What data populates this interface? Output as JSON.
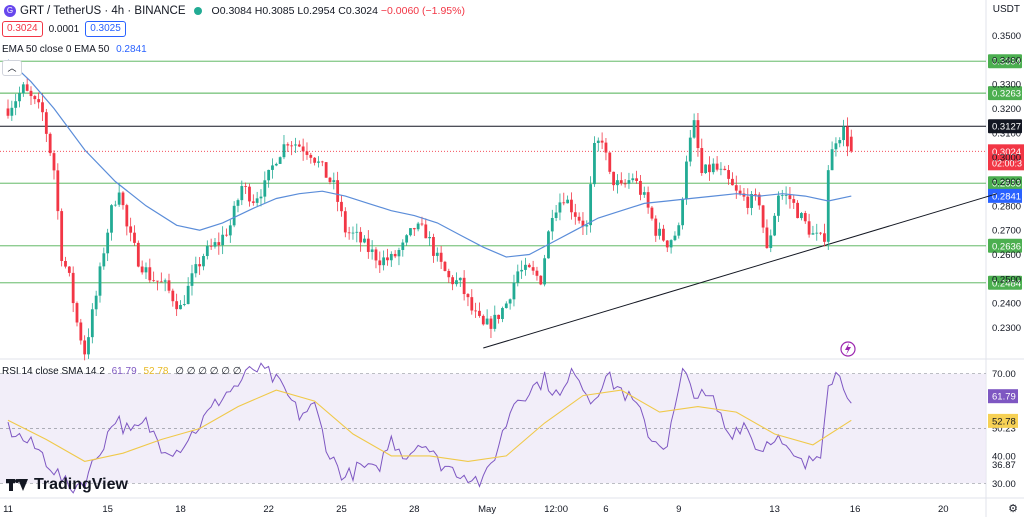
{
  "header": {
    "symbol_icon": "coin-icon",
    "symbol": "GRT / TetherUS · 4h · BINANCE",
    "open": "O0.3084",
    "high": "H0.3085",
    "low": "L0.2954",
    "close": "C0.3024",
    "change": "−0.0060 (−1.95%)",
    "sell_price": "0.3024",
    "spread": "0.0001",
    "buy_price": "0.3025",
    "ema_legend": "EMA 50 close 0 EMA 50",
    "ema_value": "0.2841",
    "currency": "USDT",
    "collapse_icon": "chevron-up-icon"
  },
  "rsi_legend": {
    "label": "RSI 14 close SMA 14 2",
    "rsi_value": "61.79",
    "sma_value": "52.78",
    "zeros": "∅ ∅ ∅ ∅ ∅ ∅"
  },
  "branding": {
    "name": "TradingView",
    "icon": "tradingview-logo-icon"
  },
  "footer_icon": "gear-icon",
  "colors": {
    "up": "#22ab94",
    "down": "#f23645",
    "ema": "#5b8dd9",
    "rsi": "#7e57c2",
    "rsi_sma": "#f0c94a",
    "level": "#4caf50",
    "resistance": "#131722",
    "band": "#ede7f6"
  },
  "chart_data": {
    "type": "candlestick",
    "price_axis": {
      "range": [
        0.2175,
        0.3625
      ],
      "ticks": [
        "0.2300",
        "0.2400",
        "0.2500",
        "0.2600",
        "0.2700",
        "0.2800",
        "0.2900",
        "0.3000",
        "0.3100",
        "0.3200",
        "0.3300",
        "0.3400",
        "0.3500"
      ]
    },
    "time_axis": {
      "labels": [
        "11",
        "15",
        "18",
        "22",
        "25",
        "28",
        "May",
        "12:00",
        "6",
        "9",
        "13",
        "16",
        "20"
      ],
      "label_index": [
        0,
        26,
        45,
        68,
        87,
        106,
        125,
        143,
        156,
        175,
        200,
        221,
        244
      ]
    },
    "horizontal_levels": [
      {
        "value": 0.3394,
        "label": "0.3394",
        "color": "#4caf50"
      },
      {
        "value": 0.3263,
        "label": "0.3263",
        "color": "#4caf50"
      },
      {
        "value": 0.3127,
        "label": "0.3127",
        "color": "#131722"
      },
      {
        "value": 0.2893,
        "label": "0.2893",
        "color": "#4caf50"
      },
      {
        "value": 0.2636,
        "label": "0.2636",
        "color": "#4caf50"
      },
      {
        "value": 0.2484,
        "label": "0.2484",
        "color": "#4caf50"
      }
    ],
    "current_price": {
      "value": 0.3024,
      "label": "0.3024",
      "countdown": "02:00:3"
    },
    "ema_label": {
      "value": 0.2841,
      "label": "0.2841"
    },
    "trendline": {
      "from": [
        124,
        0.2216
      ],
      "to": [
        258,
        0.285
      ]
    },
    "anchors": [
      [
        0,
        0.32
      ],
      [
        4,
        0.328
      ],
      [
        9,
        0.318
      ],
      [
        12,
        0.295
      ],
      [
        14,
        0.26
      ],
      [
        16,
        0.25
      ],
      [
        18,
        0.232
      ],
      [
        20,
        0.22
      ],
      [
        23,
        0.243
      ],
      [
        25,
        0.262
      ],
      [
        27,
        0.278
      ],
      [
        29,
        0.288
      ],
      [
        31,
        0.271
      ],
      [
        34,
        0.258
      ],
      [
        37,
        0.251
      ],
      [
        41,
        0.247
      ],
      [
        45,
        0.238
      ],
      [
        48,
        0.25
      ],
      [
        51,
        0.26
      ],
      [
        55,
        0.265
      ],
      [
        58,
        0.272
      ],
      [
        61,
        0.288
      ],
      [
        64,
        0.283
      ],
      [
        67,
        0.288
      ],
      [
        70,
        0.3
      ],
      [
        73,
        0.307
      ],
      [
        76,
        0.305
      ],
      [
        79,
        0.302
      ],
      [
        82,
        0.295
      ],
      [
        85,
        0.288
      ],
      [
        88,
        0.27
      ],
      [
        91,
        0.267
      ],
      [
        94,
        0.262
      ],
      [
        97,
        0.258
      ],
      [
        100,
        0.258
      ],
      [
        103,
        0.263
      ],
      [
        106,
        0.271
      ],
      [
        109,
        0.269
      ],
      [
        112,
        0.258
      ],
      [
        115,
        0.25
      ],
      [
        118,
        0.248
      ],
      [
        121,
        0.237
      ],
      [
        124,
        0.23
      ],
      [
        127,
        0.233
      ],
      [
        130,
        0.24
      ],
      [
        133,
        0.253
      ],
      [
        136,
        0.253
      ],
      [
        139,
        0.25
      ],
      [
        142,
        0.278
      ],
      [
        145,
        0.284
      ],
      [
        148,
        0.277
      ],
      [
        151,
        0.271
      ],
      [
        153,
        0.303
      ],
      [
        155,
        0.308
      ],
      [
        157,
        0.292
      ],
      [
        160,
        0.287
      ],
      [
        163,
        0.292
      ],
      [
        166,
        0.283
      ],
      [
        169,
        0.27
      ],
      [
        172,
        0.265
      ],
      [
        175,
        0.27
      ],
      [
        177,
        0.3
      ],
      [
        179,
        0.313
      ],
      [
        181,
        0.293
      ],
      [
        184,
        0.296
      ],
      [
        187,
        0.292
      ],
      [
        190,
        0.285
      ],
      [
        193,
        0.282
      ],
      [
        196,
        0.282
      ],
      [
        198,
        0.261
      ],
      [
        201,
        0.285
      ],
      [
        204,
        0.283
      ],
      [
        207,
        0.275
      ],
      [
        210,
        0.268
      ],
      [
        212,
        0.266
      ],
      [
        213,
        0.268
      ],
      [
        214,
        0.296
      ],
      [
        216,
        0.308
      ],
      [
        218,
        0.311
      ],
      [
        220,
        0.302
      ]
    ],
    "ema_series": [
      [
        0,
        0.34
      ],
      [
        6,
        0.331
      ],
      [
        12,
        0.32
      ],
      [
        20,
        0.303
      ],
      [
        28,
        0.29
      ],
      [
        36,
        0.28
      ],
      [
        44,
        0.272
      ],
      [
        50,
        0.27
      ],
      [
        56,
        0.273
      ],
      [
        64,
        0.279
      ],
      [
        70,
        0.283
      ],
      [
        76,
        0.285
      ],
      [
        82,
        0.286
      ],
      [
        88,
        0.284
      ],
      [
        94,
        0.281
      ],
      [
        100,
        0.278
      ],
      [
        106,
        0.276
      ],
      [
        112,
        0.273
      ],
      [
        118,
        0.268
      ],
      [
        124,
        0.263
      ],
      [
        130,
        0.259
      ],
      [
        136,
        0.26
      ],
      [
        142,
        0.265
      ],
      [
        148,
        0.27
      ],
      [
        154,
        0.275
      ],
      [
        160,
        0.278
      ],
      [
        166,
        0.281
      ],
      [
        172,
        0.282
      ],
      [
        178,
        0.283
      ],
      [
        184,
        0.284
      ],
      [
        190,
        0.285
      ],
      [
        196,
        0.284
      ],
      [
        202,
        0.285
      ],
      [
        208,
        0.284
      ],
      [
        214,
        0.282
      ],
      [
        220,
        0.284
      ]
    ],
    "rsi_panel": {
      "ticks": [
        "70.00",
        "50.23",
        "40.00",
        "36.87",
        "30.00"
      ],
      "range": [
        25,
        75
      ],
      "band": [
        30,
        70
      ],
      "mid": 50,
      "rsi_label": "61.79",
      "sma_label": "52.78",
      "rsi_anchors": [
        [
          0,
          50
        ],
        [
          4,
          46
        ],
        [
          8,
          42
        ],
        [
          12,
          35
        ],
        [
          16,
          28
        ],
        [
          20,
          31
        ],
        [
          24,
          42
        ],
        [
          28,
          54
        ],
        [
          32,
          48
        ],
        [
          36,
          52
        ],
        [
          40,
          44
        ],
        [
          44,
          42
        ],
        [
          48,
          48
        ],
        [
          52,
          55
        ],
        [
          56,
          62
        ],
        [
          60,
          66
        ],
        [
          64,
          72
        ],
        [
          68,
          70
        ],
        [
          72,
          64
        ],
        [
          76,
          55
        ],
        [
          80,
          58
        ],
        [
          84,
          40
        ],
        [
          88,
          32
        ],
        [
          92,
          36
        ],
        [
          96,
          34
        ],
        [
          100,
          46
        ],
        [
          104,
          40
        ],
        [
          108,
          46
        ],
        [
          112,
          38
        ],
        [
          116,
          35
        ],
        [
          120,
          33
        ],
        [
          124,
          30
        ],
        [
          128,
          44
        ],
        [
          132,
          60
        ],
        [
          136,
          64
        ],
        [
          140,
          68
        ],
        [
          144,
          61
        ],
        [
          148,
          72
        ],
        [
          152,
          60
        ],
        [
          156,
          69
        ],
        [
          160,
          64
        ],
        [
          164,
          58
        ],
        [
          168,
          46
        ],
        [
          172,
          44
        ],
        [
          176,
          70
        ],
        [
          180,
          62
        ],
        [
          184,
          60
        ],
        [
          188,
          48
        ],
        [
          192,
          52
        ],
        [
          196,
          42
        ],
        [
          200,
          48
        ],
        [
          204,
          40
        ],
        [
          208,
          36
        ],
        [
          212,
          42
        ],
        [
          214,
          68
        ],
        [
          216,
          70
        ],
        [
          218,
          66
        ],
        [
          220,
          62
        ]
      ],
      "sma_anchors": [
        [
          0,
          53
        ],
        [
          10,
          46
        ],
        [
          20,
          38
        ],
        [
          30,
          41
        ],
        [
          40,
          46
        ],
        [
          50,
          50
        ],
        [
          60,
          58
        ],
        [
          70,
          64
        ],
        [
          80,
          60
        ],
        [
          90,
          48
        ],
        [
          100,
          40
        ],
        [
          110,
          40
        ],
        [
          120,
          38
        ],
        [
          130,
          40
        ],
        [
          140,
          52
        ],
        [
          150,
          62
        ],
        [
          160,
          64
        ],
        [
          170,
          56
        ],
        [
          180,
          58
        ],
        [
          190,
          56
        ],
        [
          200,
          48
        ],
        [
          210,
          44
        ],
        [
          220,
          53
        ]
      ]
    }
  }
}
